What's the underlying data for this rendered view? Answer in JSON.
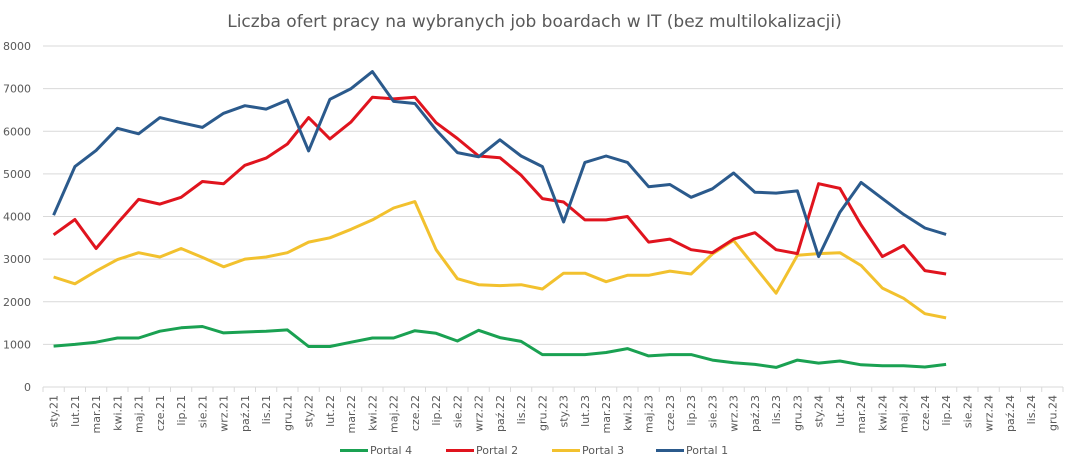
{
  "chart_data": {
    "type": "line",
    "title": "Liczba ofert pracy na wybranych job boardach  w IT (bez multilokalizacji)",
    "xlabel": "",
    "ylabel": "",
    "ylim": [
      0,
      8000
    ],
    "yticks": [
      0,
      1000,
      2000,
      3000,
      4000,
      5000,
      6000,
      7000,
      8000
    ],
    "grid": true,
    "legend_position": "bottom",
    "categories": [
      "sty.21",
      "lut.21",
      "mar.21",
      "kwi.21",
      "maj.21",
      "cze.21",
      "lip.21",
      "sie.21",
      "wrz.21",
      "paź.21",
      "lis.21",
      "gru.21",
      "sty.22",
      "lut.22",
      "mar.22",
      "kwi.22",
      "maj.22",
      "cze.22",
      "lip.22",
      "sie.22",
      "wrz.22",
      "paź.22",
      "lis.22",
      "gru.22",
      "sty.23",
      "lut.23",
      "mar.23",
      "kwi.23",
      "maj.23",
      "cze.23",
      "lip.23",
      "sie.23",
      "wrz.23",
      "paź.23",
      "lis.23",
      "gru.23",
      "sty.24",
      "lut.24",
      "mar.24",
      "kwi.24",
      "maj.24",
      "cze.24",
      "lip.24",
      "sie.24",
      "wrz.24",
      "paź.24",
      "lis.24",
      "gru.24"
    ],
    "series": [
      {
        "name": "Portal 4",
        "color": "#1aa152",
        "values": [
          960,
          1000,
          1050,
          1150,
          1150,
          1310,
          1390,
          1420,
          1270,
          1290,
          1310,
          1340,
          950,
          950,
          1050,
          1150,
          1150,
          1320,
          1260,
          1080,
          1330,
          1160,
          1070,
          760,
          760,
          760,
          810,
          900,
          730,
          760,
          760,
          630,
          570,
          530,
          460,
          630,
          560,
          610,
          520,
          500,
          500,
          470,
          530
        ]
      },
      {
        "name": "Portal 2",
        "color": "#e0141e",
        "values": [
          3570,
          3930,
          3250,
          3840,
          4400,
          4290,
          4450,
          4820,
          4770,
          5200,
          5370,
          5700,
          6320,
          5820,
          6220,
          6800,
          6760,
          6800,
          6200,
          5830,
          5420,
          5380,
          4970,
          4420,
          4340,
          3920,
          3920,
          4000,
          3400,
          3470,
          3220,
          3150,
          3470,
          3620,
          3220,
          3130,
          4770,
          4660,
          3800,
          3060,
          3320,
          2730,
          2650
        ]
      },
      {
        "name": "Portal 3",
        "color": "#f2c12e",
        "values": [
          2580,
          2420,
          2720,
          2990,
          3150,
          3050,
          3250,
          3040,
          2820,
          3000,
          3050,
          3150,
          3400,
          3500,
          3700,
          3920,
          4200,
          4350,
          3220,
          2540,
          2400,
          2380,
          2400,
          2300,
          2670,
          2670,
          2470,
          2620,
          2620,
          2720,
          2650,
          3120,
          3440,
          2820,
          2200,
          3090,
          3130,
          3150,
          2850,
          2320,
          2080,
          1720,
          1620
        ]
      },
      {
        "name": "Portal 1",
        "color": "#2b5a8c",
        "values": [
          4030,
          5170,
          5550,
          6070,
          5940,
          6320,
          6200,
          6090,
          6420,
          6600,
          6520,
          6730,
          5540,
          6750,
          7000,
          7400,
          6700,
          6650,
          6030,
          5500,
          5400,
          5800,
          5420,
          5170,
          3870,
          5270,
          5420,
          5270,
          4700,
          4750,
          4450,
          4650,
          5020,
          4570,
          4550,
          4600,
          3060,
          4100,
          4800,
          4420,
          4050,
          3730,
          3580
        ]
      }
    ],
    "draw_order": [
      "Portal 4",
      "Portal 3",
      "Portal 2",
      "Portal 1"
    ]
  }
}
